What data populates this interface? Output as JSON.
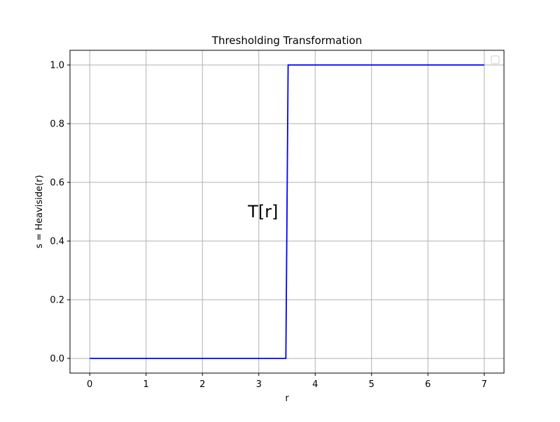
{
  "chart_data": {
    "type": "line",
    "title": "Thresholding Transformation",
    "xlabel": "r",
    "ylabel": "s = Heaviside(r)",
    "xlim": [
      -0.35,
      7.35
    ],
    "ylim": [
      -0.05,
      1.05
    ],
    "xticks": [
      0,
      1,
      2,
      3,
      4,
      5,
      6,
      7
    ],
    "yticks": [
      0.0,
      0.2,
      0.4,
      0.6,
      0.8,
      1.0
    ],
    "xtick_labels": [
      "0",
      "1",
      "2",
      "3",
      "4",
      "5",
      "6",
      "7"
    ],
    "ytick_labels": [
      "0.0",
      "0.2",
      "0.4",
      "0.6",
      "0.8",
      "1.0"
    ],
    "grid": true,
    "legend": "top-right (empty)",
    "series": [
      {
        "color": "#0000ff",
        "x": [
          0,
          3.48,
          3.52,
          7
        ],
        "y": [
          0,
          0,
          1,
          1
        ]
      }
    ],
    "annotations": [
      {
        "text": "T[r]",
        "x": 3.1,
        "y": 0.5
      }
    ]
  }
}
